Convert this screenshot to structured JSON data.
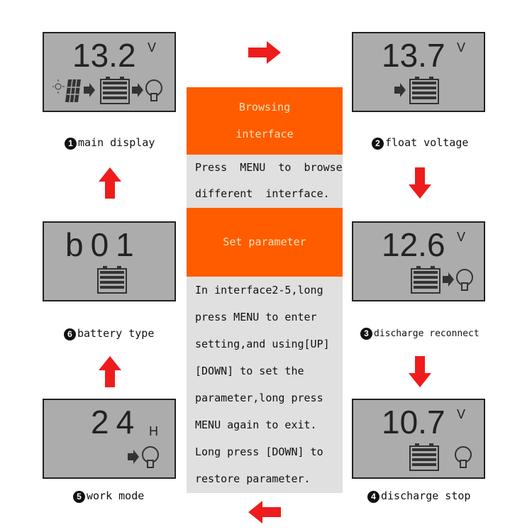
{
  "screens": [
    {
      "id": "main",
      "digits": "13.2",
      "unit": "V",
      "label": "main display",
      "num": "1",
      "icons": [
        "sun-icon",
        "solar-panel-icon",
        "arrow-right-icon",
        "battery-icon",
        "arrow-right-icon",
        "bulb-icon"
      ]
    },
    {
      "id": "float",
      "digits": "13.7",
      "unit": "V",
      "label": "float voltage",
      "num": "2",
      "icons": [
        "arrow-right-icon",
        "battery-icon"
      ]
    },
    {
      "id": "reconnect",
      "digits": "12.6",
      "unit": "V",
      "label": "discharge reconnect",
      "num": "3",
      "icons": [
        "battery-icon",
        "arrow-right-icon",
        "bulb-icon"
      ]
    },
    {
      "id": "stop",
      "digits": "10.7",
      "unit": "V",
      "label": "discharge stop",
      "num": "4",
      "icons": [
        "battery-icon",
        "bulb-icon"
      ]
    },
    {
      "id": "work",
      "digits": "24",
      "unit": "H",
      "label": "work mode",
      "num": "5",
      "icons": [
        "arrow-right-icon",
        "bulb-icon"
      ]
    },
    {
      "id": "battery",
      "digits": "b01",
      "unit": "",
      "label": "battery type",
      "num": "6",
      "icons": [
        "battery-icon"
      ]
    }
  ],
  "center": {
    "browse_title_1": "Browsing",
    "browse_title_2": "interface",
    "browse_text_1": "Press  MENU  to  browse",
    "browse_text_2": "different  interface.",
    "set_title": "Set parameter",
    "set_lines": [
      "In interface2-5,long",
      "press MENU to enter",
      "setting,and using[UP]",
      "[DOWN] to set the",
      "parameter,long press",
      "MENU again to exit.",
      "Long press [DOWN] to",
      "restore parameter."
    ]
  },
  "colors": {
    "accent": "#ff5c00",
    "arrow": "#ee1c1c",
    "lcd": "#acacac"
  }
}
